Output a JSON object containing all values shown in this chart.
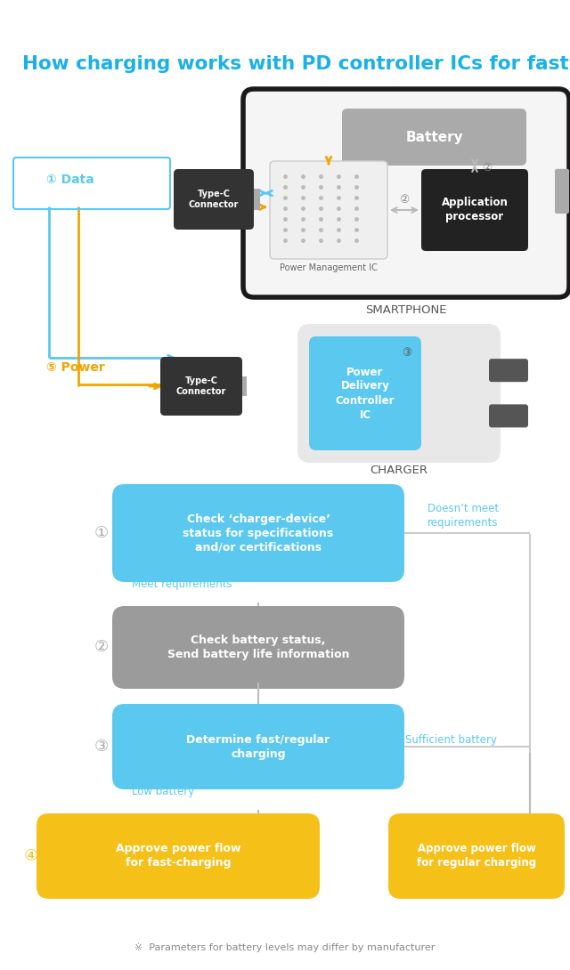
{
  "title": "How charging works with PD controller ICs for fast-charging",
  "title_color": "#1ab0e8",
  "bg_color": "#ffffff",
  "colors": {
    "blue": "#5bc8f0",
    "gray_box": "#9b9b9b",
    "yellow": "#f5c018",
    "orange_arrow": "#f0a500",
    "black_box": "#222222",
    "white": "#ffffff",
    "phone_border": "#1a1a1a",
    "connector_dark": "#333333",
    "arrow_gray": "#cccccc",
    "text_blue": "#5bc8f0",
    "charger_body": "#e0e0e0",
    "charger_pin": "#555555",
    "footnote_gray": "#888888",
    "pm_dot": "#bbbbbb",
    "battery_gray": "#aaaaaa"
  },
  "smartphone_label": "SMARTPHONE",
  "charger_label": "CHARGER",
  "battery_label": "Battery",
  "power_mgmt_label": "Power Management IC",
  "app_proc_label": "Application\nprocessor",
  "typec_label1": "Type-C\nConnector",
  "typec_label2": "Type-C\nConnector",
  "pd_label": "Power\nDelivery\nController\nIC",
  "data_label": "① Data",
  "power_label": "⑤ Power",
  "footnote": "※  Parameters for battery levels may differ by manufacturer"
}
